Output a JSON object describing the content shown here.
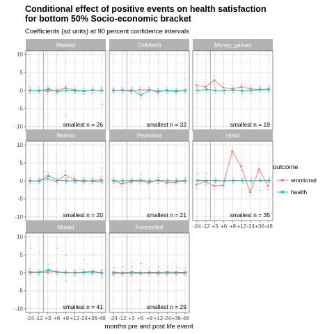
{
  "chart_data": {
    "type": "line",
    "title_line1": "Conditional effect of positive events on health satisfaction",
    "title_line2": "for bottom 50% Socio-economic bracket",
    "subtitle": "Coefficients (sd units) at 90 percent confidence intervals",
    "xlabel": "months pre and post life event",
    "x_ticks": [
      "-24",
      "-12",
      "+3",
      "+6",
      "+9",
      "+12",
      "-24",
      "+36",
      "-48"
    ],
    "y_ticks": [
      10,
      5,
      0,
      -5,
      -10
    ],
    "ylim": [
      -11,
      11
    ],
    "grid": true,
    "legend": {
      "title": "outcome",
      "position": "right",
      "entries": [
        {
          "name": "emotional",
          "color": "#F8766D"
        },
        {
          "name": "health",
          "color": "#00BFC4"
        }
      ]
    },
    "panels": [
      {
        "name": "Married",
        "annotation": "smallest n = 26",
        "series": [
          {
            "name": "emotional",
            "values": [
              0,
              0,
              -0.2,
              0,
              0.6,
              0.2,
              -0.2,
              0,
              0
            ],
            "ci_low": [
              -0.8,
              -0.8,
              -1.0,
              -0.6,
              -0.6,
              -0.4,
              -1.0,
              -0.8,
              -0.8
            ],
            "ci_high": [
              0.8,
              0.8,
              0.8,
              0.8,
              1.0,
              0.8,
              0.6,
              0.6,
              0.8
            ]
          },
          {
            "name": "health",
            "values": [
              0,
              -0.1,
              0.4,
              -0.3,
              0,
              -0.1,
              -0.1,
              0.1,
              -0.1
            ],
            "ci_low": [
              -0.6,
              -0.6,
              -0.4,
              -1.0,
              -7.0,
              -0.8,
              -0.8,
              -0.6,
              -4.0
            ],
            "ci_high": [
              0.6,
              0.6,
              1.0,
              0.4,
              1.0,
              0.6,
              0.6,
              0.8,
              0.6
            ]
          }
        ]
      },
      {
        "name": "Childbirth",
        "annotation": "smallest n = 32",
        "series": [
          {
            "name": "emotional",
            "values": [
              0,
              0.1,
              -0.2,
              0.2,
              0.2,
              -0.4,
              0.1,
              -0.3,
              0
            ],
            "ci_low": [
              -0.6,
              -0.6,
              -0.8,
              -0.4,
              -0.4,
              -1.2,
              -0.6,
              -1.0,
              -0.6
            ],
            "ci_high": [
              0.6,
              0.8,
              0.6,
              0.8,
              0.8,
              0.4,
              0.8,
              0.4,
              3.4
            ]
          },
          {
            "name": "health",
            "values": [
              0,
              0,
              0.1,
              -1.2,
              0.1,
              -0.2,
              -0.1,
              -0.1,
              0
            ],
            "ci_low": [
              -0.6,
              -0.6,
              -0.6,
              -2.0,
              -0.6,
              -0.8,
              -0.8,
              -0.8,
              -0.6
            ],
            "ci_high": [
              0.6,
              0.6,
              0.8,
              -0.4,
              0.8,
              0.4,
              0.6,
              0.6,
              0.6
            ]
          }
        ]
      },
      {
        "name": "Money_gained",
        "annotation": "smallest n = 19",
        "series": [
          {
            "name": "emotional",
            "values": [
              1.4,
              1.0,
              2.8,
              0.8,
              0.4,
              1.0,
              0.5,
              0.2,
              0.4
            ],
            "ci_low": [
              0.4,
              0.2,
              1.6,
              -0.2,
              -0.4,
              0.2,
              -0.4,
              -0.6,
              -0.4
            ],
            "ci_high": [
              2.4,
              2.0,
              4.0,
              1.8,
              1.2,
              1.8,
              1.4,
              1.0,
              1.2
            ]
          },
          {
            "name": "health",
            "values": [
              0,
              0.3,
              0,
              0,
              0.1,
              -0.1,
              0,
              0.3,
              0.3
            ],
            "ci_low": [
              -0.8,
              -0.4,
              -0.8,
              -0.8,
              -0.6,
              -0.8,
              -0.8,
              -0.4,
              -0.4
            ],
            "ci_high": [
              0.8,
              1.0,
              0.8,
              0.8,
              0.8,
              0.6,
              0.8,
              1.0,
              1.0
            ]
          }
        ]
      },
      {
        "name": "Retired",
        "annotation": "smallest n = 20",
        "series": [
          {
            "name": "emotional",
            "values": [
              0,
              0,
              0.6,
              -0.2,
              1.6,
              0.4,
              -0.2,
              0.1,
              0.4
            ],
            "ci_low": [
              -0.8,
              -0.8,
              -0.2,
              -1.0,
              0.6,
              -0.4,
              -1.0,
              -0.6,
              -0.4
            ],
            "ci_high": [
              0.8,
              0.8,
              1.4,
              0.6,
              2.6,
              1.2,
              0.6,
              0.8,
              1.2
            ]
          },
          {
            "name": "health",
            "values": [
              0,
              0,
              1.4,
              0.2,
              0,
              0,
              0.1,
              -0.1,
              0
            ],
            "ci_low": [
              -0.6,
              -0.6,
              0.6,
              -0.6,
              -0.6,
              -0.6,
              -0.6,
              -0.8,
              -0.6
            ],
            "ci_high": [
              0.6,
              0.6,
              2.2,
              1.0,
              0.6,
              0.6,
              0.8,
              0.6,
              3.6
            ]
          }
        ]
      },
      {
        "name": "Promoted",
        "annotation": "smallest n = 21",
        "series": [
          {
            "name": "emotional",
            "values": [
              0.1,
              -0.8,
              -0.3,
              0,
              -0.5,
              0.2,
              -0.6,
              -0.4,
              0
            ],
            "ci_low": [
              -0.8,
              -1.6,
              -1.0,
              -0.8,
              -1.2,
              -0.6,
              -1.4,
              -1.2,
              -0.8
            ],
            "ci_high": [
              1.0,
              0,
              0.4,
              0.8,
              0.2,
              1.0,
              0.2,
              0.4,
              0.8
            ]
          },
          {
            "name": "health",
            "values": [
              0,
              0,
              0.1,
              0.2,
              -0.1,
              0.1,
              0,
              0,
              0.1
            ],
            "ci_low": [
              -0.6,
              -0.6,
              -0.6,
              -0.4,
              -4.6,
              -0.6,
              -0.6,
              -0.6,
              -0.6
            ],
            "ci_high": [
              0.6,
              0.6,
              0.8,
              1.8,
              0.6,
              0.8,
              0.6,
              0.6,
              0.8
            ]
          }
        ]
      },
      {
        "name": "Hired",
        "annotation": "smallest n = 35",
        "series": [
          {
            "name": "emotional",
            "values": [
              -1.0,
              -0.2,
              -1.4,
              -1.2,
              8.2,
              4.0,
              -3.2,
              3.2,
              -1.4
            ],
            "ci_low": [
              -2.0,
              -1.2,
              -2.4,
              -2.2,
              7.2,
              3.0,
              -4.2,
              2.2,
              -2.4
            ],
            "ci_high": [
              0,
              0.8,
              -0.4,
              -0.2,
              9.2,
              5.0,
              -2.2,
              4.2,
              -0.4
            ]
          },
          {
            "name": "health",
            "values": [
              0.1,
              0.1,
              0.1,
              0,
              0.1,
              0.1,
              0,
              0.1,
              0.1
            ],
            "ci_low": [
              -0.8,
              -0.8,
              -0.6,
              -0.8,
              -0.6,
              -0.6,
              -0.8,
              -2.6,
              -0.6
            ],
            "ci_high": [
              2.0,
              2.0,
              0.8,
              0.8,
              0.8,
              0.8,
              0.8,
              0.8,
              0.8
            ]
          }
        ]
      },
      {
        "name": "Moved",
        "annotation": "smallest n = 41",
        "series": [
          {
            "name": "emotional",
            "values": [
              0.3,
              0.1,
              0.2,
              0.3,
              0,
              0,
              0.1,
              0,
              0.1
            ],
            "ci_low": [
              -0.4,
              -0.6,
              -0.4,
              -0.4,
              -0.6,
              -0.6,
              -0.6,
              -0.6,
              -0.6
            ],
            "ci_high": [
              1.0,
              0.8,
              0.8,
              1.0,
              0.6,
              0.6,
              0.8,
              0.6,
              0.8
            ]
          },
          {
            "name": "health",
            "values": [
              0.1,
              0.2,
              0.8,
              0.2,
              0.1,
              0,
              0.2,
              0.4,
              -0.1
            ],
            "ci_low": [
              -0.6,
              -0.6,
              -0.2,
              -0.6,
              -2.2,
              -0.8,
              -0.6,
              -0.4,
              -1.4
            ],
            "ci_high": [
              6.8,
              5.6,
              2.4,
              6.8,
              4.8,
              0.8,
              3.8,
              5.0,
              0.6
            ]
          }
        ]
      },
      {
        "name": "Reconciled",
        "annotation": "smallest n = 29",
        "series": [
          {
            "name": "emotional",
            "values": [
              -0.2,
              -0.2,
              -0.2,
              -0.2,
              -0.1,
              -0.2,
              -0.2,
              -0.2,
              -0.1
            ],
            "ci_low": [
              -0.8,
              -0.8,
              -0.8,
              -4.8,
              -0.8,
              -0.8,
              -0.8,
              -0.8,
              -0.8
            ],
            "ci_high": [
              0.4,
              0.4,
              0.4,
              0.4,
              0.4,
              0.4,
              0.4,
              0.4,
              0.4
            ]
          },
          {
            "name": "health",
            "values": [
              0.1,
              0,
              0.2,
              0,
              0.1,
              0.1,
              0.2,
              0.1,
              0.1
            ],
            "ci_low": [
              -0.6,
              -0.6,
              -0.6,
              -0.6,
              -0.6,
              -0.6,
              -0.6,
              -0.6,
              -0.6
            ],
            "ci_high": [
              1.4,
              1.6,
              1.6,
              2.6,
              1.6,
              1.6,
              1.6,
              1.6,
              1.6
            ]
          }
        ]
      }
    ]
  }
}
